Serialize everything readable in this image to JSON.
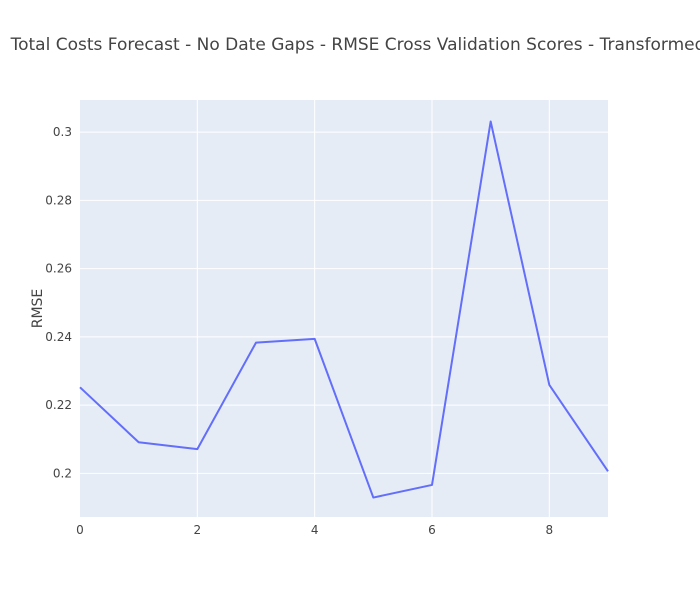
{
  "chart_data": {
    "type": "line",
    "title": "Total Costs Forecast - No Date Gaps - RMSE Cross Validation Scores - Transformed",
    "xlabel": "",
    "ylabel": "RMSE",
    "x": [
      0,
      1,
      2,
      3,
      4,
      5,
      6,
      7,
      8,
      9
    ],
    "series": [
      {
        "values": [
          0.2252,
          0.2091,
          0.2071,
          0.2383,
          0.2394,
          0.1929,
          0.1966,
          0.3031,
          0.2259,
          0.2006
        ],
        "color": "#636efa"
      }
    ],
    "xlim": [
      0,
      9
    ],
    "ylim": [
      0.1872,
      0.3094
    ],
    "xticks": [
      0,
      2,
      4,
      6,
      8
    ],
    "yticks": [
      0.2,
      0.22,
      0.24,
      0.26,
      0.28,
      0.3
    ],
    "ytick_labels": [
      "0.2",
      "0.22",
      "0.24",
      "0.26",
      "0.28",
      "0.3"
    ],
    "grid": true,
    "plot_background": "#e5ecf6",
    "gridline_color": "#ffffff",
    "text_color": "#444444"
  }
}
